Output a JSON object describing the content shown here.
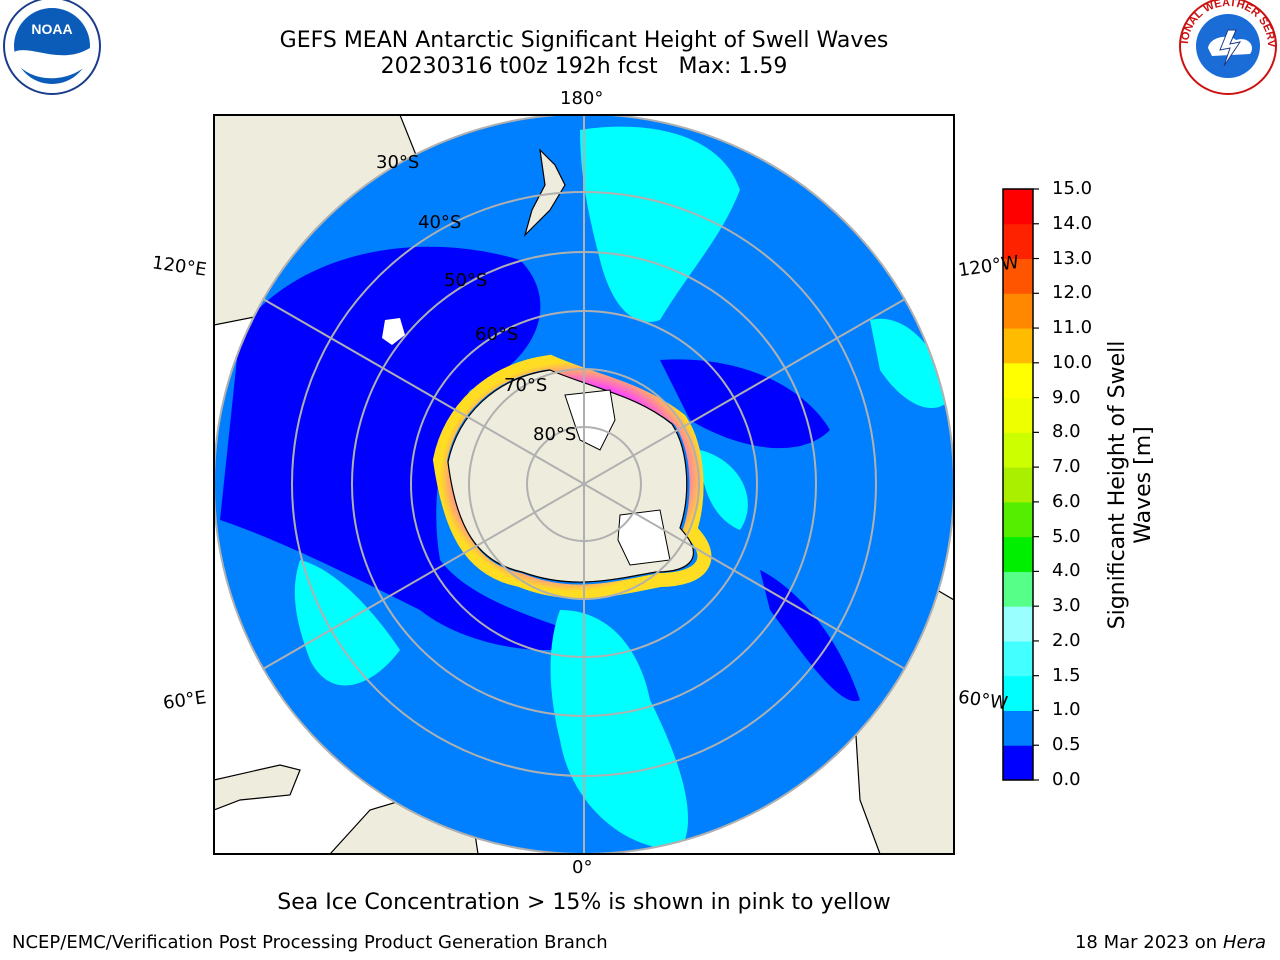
{
  "title_line1": "GEFS MEAN Antarctic Significant Height of Swell Waves",
  "title_line2": "20230316 t00z 192h fcst   Max: 1.59",
  "logos": {
    "left": {
      "name": "noaa-logo",
      "text": "NOAA"
    },
    "right": {
      "name": "nws-logo",
      "text": "NATIONAL WEATHER SERVICE"
    }
  },
  "map": {
    "projection": "south-polar-stereographic",
    "longitude_labels": {
      "top": "180°",
      "bottom": "0°",
      "upper_left": "120°E",
      "upper_right": "120°W",
      "lower_left": "60°E",
      "lower_right": "60°W"
    },
    "latitude_labels": [
      "30°S",
      "40°S",
      "50°S",
      "60°S",
      "70°S",
      "80°S"
    ],
    "colors": {
      "land": "#eeecdc",
      "sea_ice_low": "#ff44ff",
      "sea_ice_high": "#ffdd22",
      "grid": "#b0b0b0"
    }
  },
  "colorbar": {
    "title_line1": "Significant Height of Swell",
    "title_line2": "Waves [m]",
    "ticks": [
      "0.0",
      "0.5",
      "1.0",
      "1.5",
      "2.0",
      "3.0",
      "4.0",
      "5.0",
      "6.0",
      "7.0",
      "8.0",
      "9.0",
      "10.0",
      "11.0",
      "12.0",
      "13.0",
      "14.0",
      "15.0"
    ],
    "colors": [
      "#0000ff",
      "#0080ff",
      "#00ffff",
      "#44ffff",
      "#99ffff",
      "#55ff88",
      "#00ee00",
      "#55ee00",
      "#aaee00",
      "#ccff00",
      "#eeff00",
      "#ffff00",
      "#ffbb00",
      "#ff8800",
      "#ff5500",
      "#ff2200",
      "#ff0000"
    ]
  },
  "note": "Sea Ice Concentration > 15% is shown in pink to yellow",
  "footer_left": "NCEP/EMC/Verification Post Processing Product Generation Branch",
  "footer_date": "18 Mar 2023 on",
  "footer_machine": "Hera"
}
